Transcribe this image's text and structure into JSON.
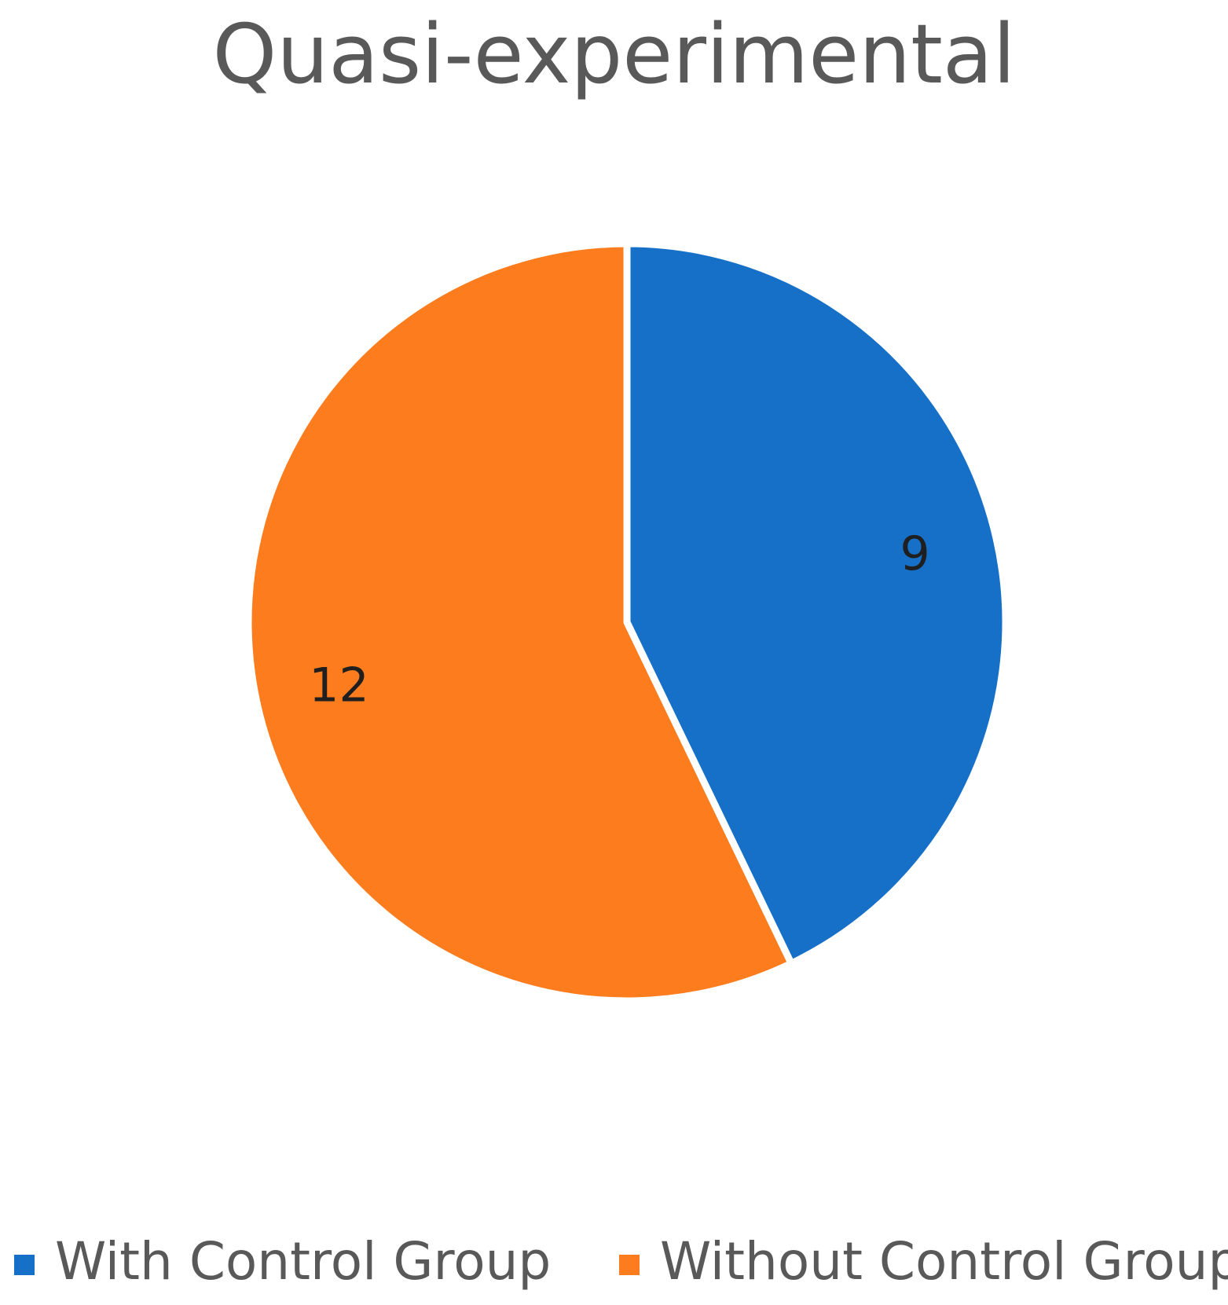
{
  "chart_data": {
    "type": "pie",
    "title": "Quasi-experimental",
    "categories": [
      "With Control Group",
      "Without Control Group"
    ],
    "values": [
      9,
      12
    ],
    "colors": [
      "#1670c7",
      "#fd7c1e"
    ],
    "data_labels": [
      "9",
      "12"
    ],
    "start_angle_deg": 0,
    "direction": "clockwise",
    "legend_position": "bottom"
  }
}
